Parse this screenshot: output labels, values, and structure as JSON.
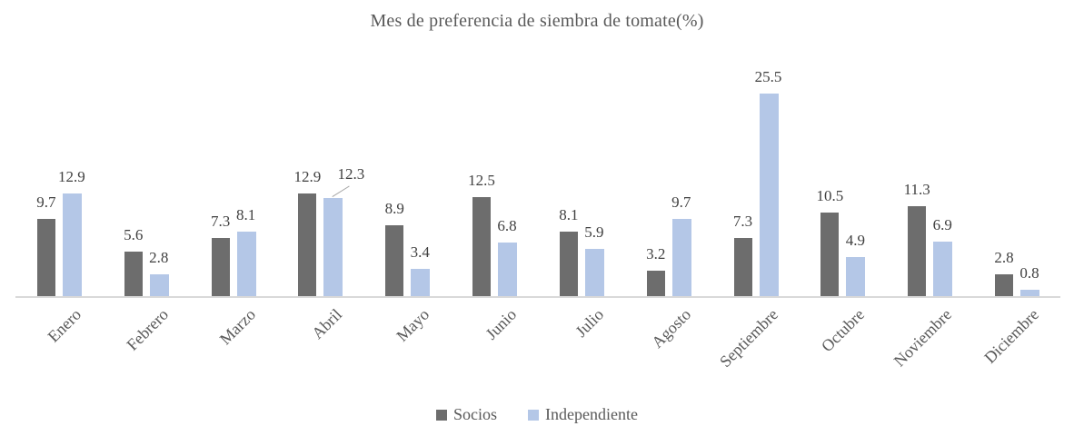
{
  "chart_data": {
    "type": "bar",
    "title": "Mes de preferencia de siembra de tomate(%)",
    "categories": [
      "Enero",
      "Febrero",
      "Marzo",
      "Abril",
      "Mayo",
      "Junio",
      "Julio",
      "Agosto",
      "Septiembre",
      "Octubre",
      "Noviembre",
      "Diciembre"
    ],
    "series": [
      {
        "name": "Socios",
        "color": "#6d6d6d",
        "values": [
          9.7,
          5.6,
          7.3,
          12.9,
          8.9,
          12.5,
          8.1,
          3.2,
          7.3,
          10.5,
          11.3,
          2.8
        ]
      },
      {
        "name": "Independiente",
        "color": "#b4c7e7",
        "values": [
          12.9,
          2.8,
          8.1,
          12.3,
          3.4,
          6.8,
          5.9,
          9.7,
          25.5,
          4.9,
          6.9,
          0.8
        ]
      }
    ],
    "xlabel": "",
    "ylabel": "",
    "ylim": [
      0,
      26
    ],
    "grid": false,
    "y_axis_visible": false,
    "data_labels": "outside-end",
    "legend_position": "bottom",
    "category_label_rotation_deg": -45,
    "annotations": [
      {
        "category": "Abril",
        "series": "Independiente",
        "label_offset": true,
        "leader_line": true
      }
    ]
  },
  "legend": {
    "items": [
      {
        "label": "Socios",
        "color": "#6d6d6d"
      },
      {
        "label": "Independiente",
        "color": "#b4c7e7"
      }
    ]
  },
  "colors": {
    "axis_line": "#d9d9d9",
    "leader_line": "#a6a6a6",
    "title_text": "#595959",
    "label_text": "#404040",
    "category_text": "#595959",
    "background": "#ffffff"
  }
}
